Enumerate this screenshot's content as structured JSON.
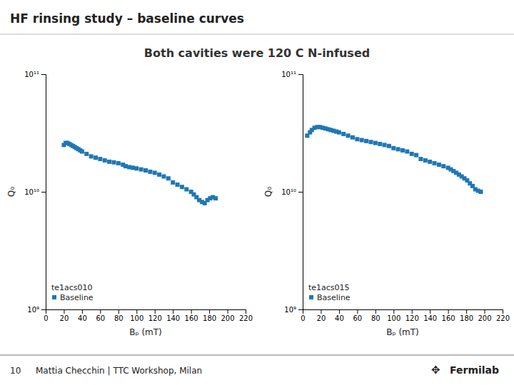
{
  "title": "HF rinsing study – baseline curves",
  "subtitle": "Both cavities were 120 C N-infused",
  "annotations": [
    "10",
    "Mattia Checchin | TTC Workshop, Milan",
    "✥",
    "Fermilab"
  ],
  "chart_data": [
    {
      "type": "scatter",
      "legend_title": "te1acs010",
      "legend": "lower left",
      "log": "y",
      "grid": false,
      "marker": "square",
      "x_label": "Bₚ (mT)",
      "y_label": "Q₀",
      "xlim": [
        0,
        220
      ],
      "ylim": [
        1000000000.0,
        100000000000.0
      ],
      "xticks": [
        0,
        20,
        40,
        60,
        80,
        100,
        120,
        140,
        160,
        180,
        200,
        220
      ],
      "yticks": [
        {
          "value": 1000000000.0,
          "label": "10⁹"
        },
        {
          "value": 10000000000.0,
          "label": "10¹⁰"
        },
        {
          "value": 100000000000.0,
          "label": "10¹¹"
        }
      ],
      "x": [
        20,
        22,
        24,
        26,
        28,
        30,
        32,
        34,
        36,
        38,
        40,
        45,
        50,
        55,
        60,
        65,
        70,
        75,
        80,
        85,
        88,
        92,
        96,
        100,
        105,
        110,
        115,
        120,
        125,
        130,
        135,
        140,
        145,
        150,
        155,
        160,
        163,
        166,
        169,
        172,
        175,
        178,
        181,
        184,
        187
      ],
      "series": [
        {
          "name": "Baseline",
          "values": [
            25000000000.0,
            26000000000.0,
            26000000000.0,
            25500000000.0,
            25000000000.0,
            24500000000.0,
            24000000000.0,
            23500000000.0,
            23000000000.0,
            22500000000.0,
            22000000000.0,
            21000000000.0,
            20000000000.0,
            19500000000.0,
            19000000000.0,
            18500000000.0,
            18000000000.0,
            17800000000.0,
            17500000000.0,
            17000000000.0,
            16500000000.0,
            16200000000.0,
            16000000000.0,
            15800000000.0,
            15500000000.0,
            15200000000.0,
            14800000000.0,
            14500000000.0,
            14000000000.0,
            13500000000.0,
            13000000000.0,
            12000000000.0,
            11500000000.0,
            11000000000.0,
            10500000000.0,
            10000000000.0,
            9500000000.0,
            9000000000.0,
            8500000000.0,
            8200000000.0,
            8000000000.0,
            8500000000.0,
            8800000000.0,
            9000000000.0,
            8800000000.0
          ]
        }
      ]
    },
    {
      "type": "scatter",
      "legend_title": "te1acs015",
      "legend": "lower left",
      "log": "y",
      "grid": false,
      "marker": "square",
      "x_label": "Bₚ (mT)",
      "y_label": "Q₀",
      "xlim": [
        0,
        220
      ],
      "ylim": [
        1000000000.0,
        100000000000.0
      ],
      "xticks": [
        0,
        20,
        40,
        60,
        80,
        100,
        120,
        140,
        160,
        180,
        200,
        220
      ],
      "yticks": [
        {
          "value": 1000000000.0,
          "label": "10⁹"
        },
        {
          "value": 10000000000.0,
          "label": "10¹⁰"
        },
        {
          "value": 100000000000.0,
          "label": "10¹¹"
        }
      ],
      "x": [
        5,
        8,
        10,
        13,
        16,
        19,
        22,
        25,
        28,
        31,
        34,
        37,
        40,
        45,
        50,
        55,
        60,
        65,
        70,
        75,
        80,
        85,
        90,
        95,
        100,
        105,
        110,
        115,
        120,
        125,
        130,
        135,
        140,
        145,
        150,
        155,
        160,
        163,
        166,
        169,
        172,
        175,
        178,
        181,
        184,
        187,
        190,
        193,
        196
      ],
      "series": [
        {
          "name": "Baseline",
          "values": [
            30000000000.0,
            32000000000.0,
            33500000000.0,
            35000000000.0,
            35500000000.0,
            35500000000.0,
            35000000000.0,
            34500000000.0,
            34000000000.0,
            33500000000.0,
            33000000000.0,
            32500000000.0,
            32000000000.0,
            31000000000.0,
            30000000000.0,
            29000000000.0,
            28000000000.0,
            27500000000.0,
            27000000000.0,
            26500000000.0,
            26000000000.0,
            25500000000.0,
            25000000000.0,
            24500000000.0,
            23500000000.0,
            23000000000.0,
            22500000000.0,
            22000000000.0,
            21000000000.0,
            20500000000.0,
            19000000000.0,
            18500000000.0,
            18000000000.0,
            17500000000.0,
            17000000000.0,
            16500000000.0,
            16000000000.0,
            15500000000.0,
            15000000000.0,
            14500000000.0,
            14000000000.0,
            13500000000.0,
            13000000000.0,
            12500000000.0,
            11800000000.0,
            11200000000.0,
            10500000000.0,
            10200000000.0,
            10000000000.0
          ]
        }
      ]
    }
  ]
}
